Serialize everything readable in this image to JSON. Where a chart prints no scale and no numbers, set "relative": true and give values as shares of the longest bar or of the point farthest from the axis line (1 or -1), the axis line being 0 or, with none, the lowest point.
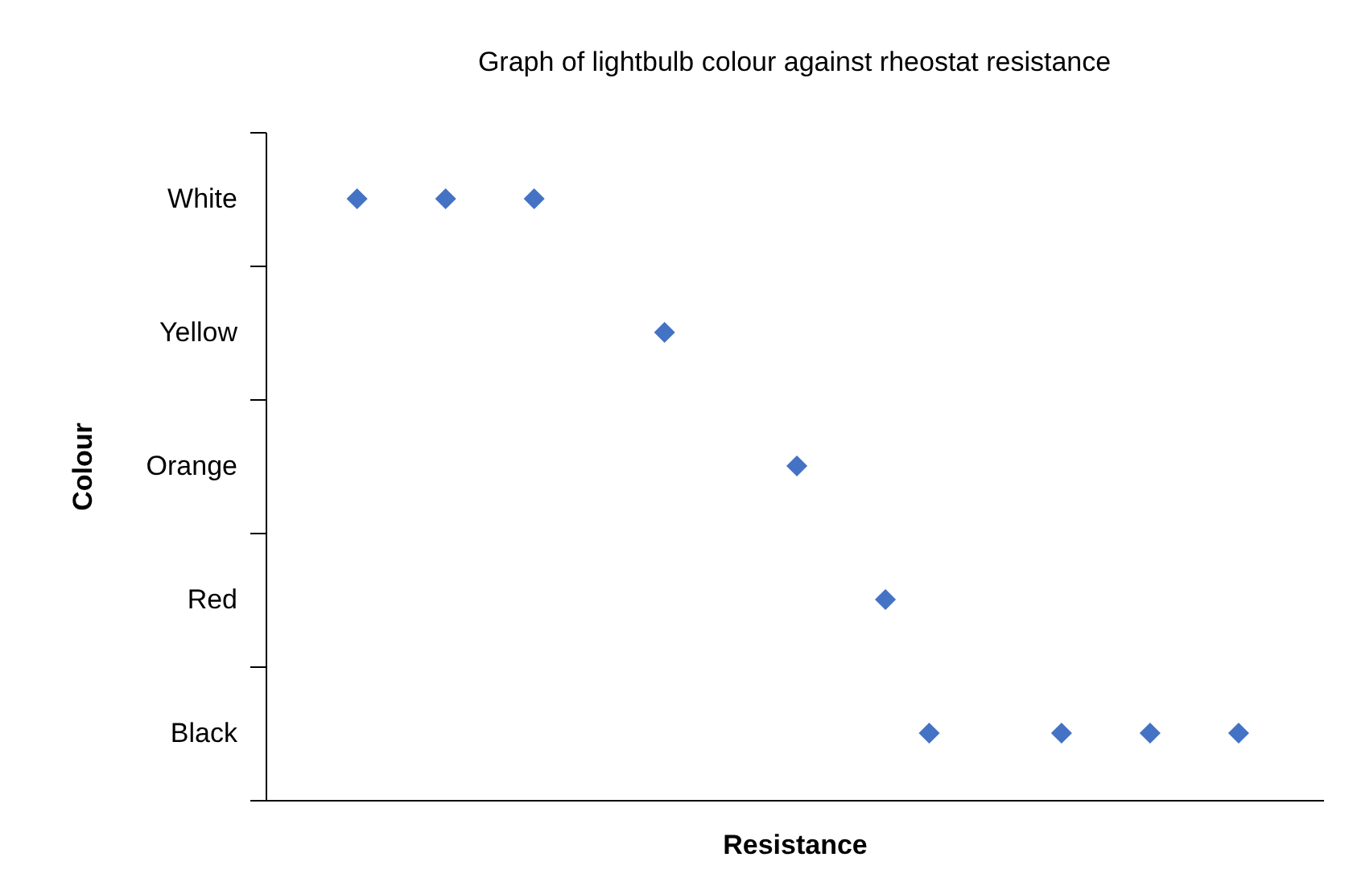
{
  "chart_data": {
    "type": "scatter",
    "title": "Graph of lightbulb colour against rheostat resistance",
    "xlabel": "Resistance",
    "ylabel": "Colour",
    "orientation": "horizontal",
    "relative": true,
    "categories": [
      "White",
      "Yellow",
      "Orange",
      "Red",
      "Black"
    ],
    "series": [
      {
        "color": "#4472c4",
        "values": [
          0.094,
          0.41,
          0.546,
          0.637,
          0.682
        ]
      },
      {
        "color": "#4472c4",
        "values": [
          0.185,
          null,
          null,
          null,
          0.818
        ]
      },
      {
        "color": "#4472c4",
        "values": [
          0.276,
          null,
          null,
          null,
          0.909
        ]
      },
      {
        "color": "#4472c4",
        "values": [
          null,
          null,
          null,
          null,
          1
        ]
      }
    ],
    "marker": "diamond",
    "grid": false,
    "legend": false,
    "tick_labels": "y"
  }
}
